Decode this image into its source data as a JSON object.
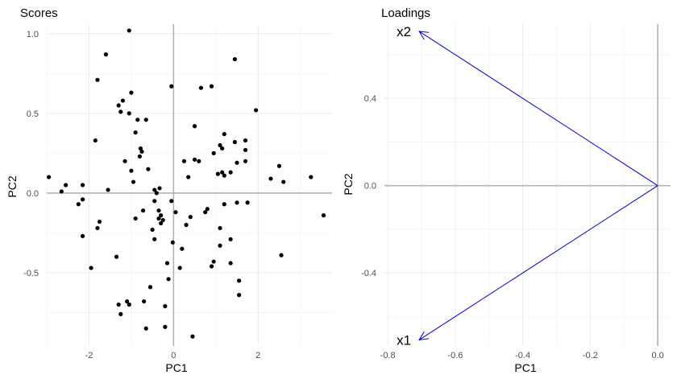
{
  "chart_data": [
    {
      "type": "scatter",
      "title": "Scores",
      "xlabel": "PC1",
      "ylabel": "PC2",
      "xlim": [
        -3.0,
        3.75
      ],
      "ylim": [
        -0.96,
        1.06
      ],
      "xticks": [
        -2,
        0,
        2
      ],
      "xtick_labels": [
        "-2",
        "0",
        "2"
      ],
      "yticks": [
        -0.5,
        0.0,
        0.5,
        1.0
      ],
      "ytick_labels": [
        "-0.5",
        "0.0",
        "0.5",
        "1.0"
      ],
      "grid": true,
      "point_color": "#000000",
      "points": [
        [
          -2.95,
          0.1
        ],
        [
          -2.65,
          0.01
        ],
        [
          -2.55,
          0.05
        ],
        [
          -2.25,
          -0.07
        ],
        [
          -2.15,
          -0.04
        ],
        [
          -2.15,
          -0.27
        ],
        [
          -2.15,
          0.05
        ],
        [
          -1.95,
          -0.47
        ],
        [
          -1.85,
          0.33
        ],
        [
          -1.8,
          0.71
        ],
        [
          -1.8,
          -0.22
        ],
        [
          -1.75,
          -0.18
        ],
        [
          -1.6,
          0.87
        ],
        [
          -1.55,
          0.02
        ],
        [
          -1.35,
          -0.4
        ],
        [
          -1.3,
          -0.7
        ],
        [
          -1.3,
          0.55
        ],
        [
          -1.25,
          -0.76
        ],
        [
          -1.25,
          0.51
        ],
        [
          -1.2,
          0.58
        ],
        [
          -1.15,
          0.2
        ],
        [
          -1.1,
          -0.68
        ],
        [
          -1.05,
          -0.7
        ],
        [
          -1.05,
          0.5
        ],
        [
          -1.05,
          1.02
        ],
        [
          -1.0,
          0.63
        ],
        [
          -1.0,
          0.14
        ],
        [
          -0.95,
          0.07
        ],
        [
          -0.9,
          0.38
        ],
        [
          -0.9,
          -0.16
        ],
        [
          -0.85,
          0.46
        ],
        [
          -0.8,
          0.23
        ],
        [
          -0.78,
          0.28
        ],
        [
          -0.75,
          0.26
        ],
        [
          -0.72,
          -0.11
        ],
        [
          -0.7,
          -0.68
        ],
        [
          -0.65,
          0.46
        ],
        [
          -0.65,
          -0.85
        ],
        [
          -0.6,
          0.15
        ],
        [
          -0.55,
          -0.59
        ],
        [
          -0.5,
          -0.23
        ],
        [
          -0.45,
          -0.05
        ],
        [
          -0.45,
          -0.29
        ],
        [
          -0.45,
          0.02
        ],
        [
          -0.4,
          0.0
        ],
        [
          -0.35,
          -0.16
        ],
        [
          -0.35,
          -0.11
        ],
        [
          -0.33,
          0.03
        ],
        [
          -0.3,
          -0.19
        ],
        [
          -0.3,
          -0.14
        ],
        [
          -0.25,
          -0.17
        ],
        [
          -0.2,
          -0.71
        ],
        [
          -0.2,
          -0.84
        ],
        [
          -0.15,
          -0.44
        ],
        [
          -0.12,
          -0.54
        ],
        [
          -0.05,
          0.67
        ],
        [
          -0.05,
          -0.05
        ],
        [
          -0.02,
          -0.31
        ],
        [
          0.05,
          -0.12
        ],
        [
          0.15,
          -0.47
        ],
        [
          0.2,
          -0.35
        ],
        [
          0.25,
          0.2
        ],
        [
          0.3,
          -0.2
        ],
        [
          0.35,
          0.1
        ],
        [
          0.4,
          -0.15
        ],
        [
          0.45,
          -0.9
        ],
        [
          0.5,
          0.42
        ],
        [
          0.5,
          0.21
        ],
        [
          0.6,
          0.2
        ],
        [
          0.65,
          0.66
        ],
        [
          0.75,
          -0.12
        ],
        [
          0.8,
          -0.1
        ],
        [
          0.9,
          0.67
        ],
        [
          0.9,
          -0.46
        ],
        [
          0.95,
          -0.43
        ],
        [
          0.95,
          0.25
        ],
        [
          1.05,
          0.12
        ],
        [
          1.1,
          -0.22
        ],
        [
          1.1,
          0.3
        ],
        [
          1.1,
          -0.33
        ],
        [
          1.15,
          0.13
        ],
        [
          1.15,
          0.28
        ],
        [
          1.2,
          0.11
        ],
        [
          1.2,
          0.37
        ],
        [
          1.2,
          -0.07
        ],
        [
          1.35,
          0.13
        ],
        [
          1.35,
          -0.29
        ],
        [
          1.35,
          -0.44
        ],
        [
          1.45,
          0.84
        ],
        [
          1.45,
          0.32
        ],
        [
          1.5,
          0.19
        ],
        [
          1.5,
          -0.06
        ],
        [
          1.55,
          -0.55
        ],
        [
          1.55,
          -0.64
        ],
        [
          1.7,
          0.33
        ],
        [
          1.7,
          0.2
        ],
        [
          1.7,
          0.27
        ],
        [
          1.75,
          -0.06
        ],
        [
          1.95,
          0.52
        ],
        [
          2.3,
          0.09
        ],
        [
          2.5,
          0.17
        ],
        [
          2.55,
          -0.39
        ],
        [
          2.6,
          0.07
        ],
        [
          3.25,
          0.1
        ],
        [
          3.55,
          -0.14
        ]
      ]
    },
    {
      "type": "line",
      "title": "Loadings",
      "xlabel": "PC1",
      "ylabel": "PC2",
      "xlim": [
        -0.81,
        0.038
      ],
      "ylim": [
        -0.735,
        0.74
      ],
      "xticks": [
        -0.8,
        -0.6,
        -0.4,
        -0.2,
        0.0
      ],
      "xtick_labels": [
        "-0.8",
        "-0.6",
        "-0.4",
        "-0.2",
        "0.0"
      ],
      "yticks": [
        -0.4,
        0.0,
        0.4
      ],
      "ytick_labels": [
        "-0.4",
        "0.0",
        "0.4"
      ],
      "grid": true,
      "arrow_color": "#0000cd",
      "arrows": [
        {
          "label": "x2",
          "x": -0.7071,
          "y": 0.7071
        },
        {
          "label": "x1",
          "x": -0.7071,
          "y": -0.7071
        }
      ]
    }
  ]
}
